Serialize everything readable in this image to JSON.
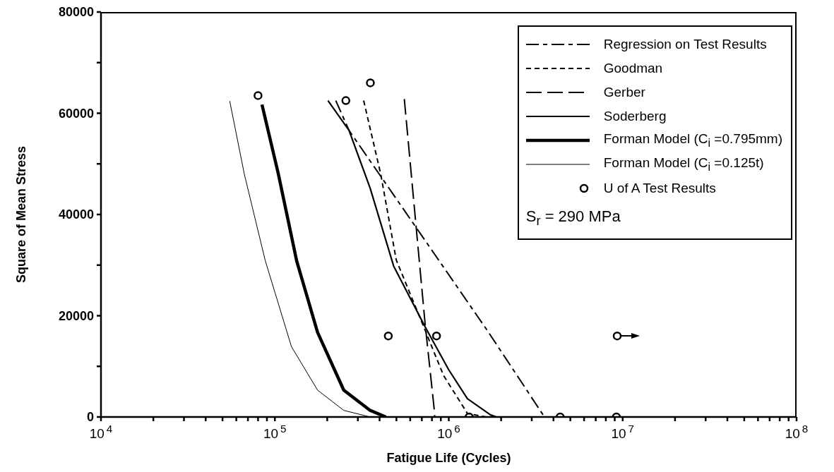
{
  "chart_data": {
    "type": "line",
    "xlabel": "Fatigue Life (Cycles)",
    "ylabel": "Square of Mean Stress",
    "log": "x",
    "legend": "top right",
    "grid": false,
    "xlim": [
      10000,
      100000000
    ],
    "ylim": [
      0,
      80000
    ],
    "xticks": [
      {
        "value": 10000,
        "label": "10$^{4}$"
      },
      {
        "value": 20000,
        "label": null
      },
      {
        "value": 30000,
        "label": null
      },
      {
        "value": 40000,
        "label": null
      },
      {
        "value": 50000,
        "label": null
      },
      {
        "value": 60000,
        "label": null
      },
      {
        "value": 70000,
        "label": null
      },
      {
        "value": 80000,
        "label": null
      },
      {
        "value": 90000,
        "label": null
      },
      {
        "value": 100000,
        "label": "10$^{5}$"
      },
      {
        "value": 200000,
        "label": null
      },
      {
        "value": 300000,
        "label": null
      },
      {
        "value": 400000,
        "label": null
      },
      {
        "value": 500000,
        "label": null
      },
      {
        "value": 600000,
        "label": null
      },
      {
        "value": 700000,
        "label": null
      },
      {
        "value": 800000,
        "label": null
      },
      {
        "value": 900000,
        "label": null
      },
      {
        "value": 1000000,
        "label": "10$^{6}$"
      },
      {
        "value": 2000000,
        "label": null
      },
      {
        "value": 3000000,
        "label": null
      },
      {
        "value": 4000000,
        "label": null
      },
      {
        "value": 5000000,
        "label": null
      },
      {
        "value": 6000000,
        "label": null
      },
      {
        "value": 7000000,
        "label": null
      },
      {
        "value": 8000000,
        "label": null
      },
      {
        "value": 9000000,
        "label": null
      },
      {
        "value": 10000000,
        "label": "10$^{7}$"
      },
      {
        "value": 20000000,
        "label": null
      },
      {
        "value": 30000000,
        "label": null
      },
      {
        "value": 40000000,
        "label": null
      },
      {
        "value": 50000000,
        "label": null
      },
      {
        "value": 60000000,
        "label": null
      },
      {
        "value": 70000000,
        "label": null
      },
      {
        "value": 80000000,
        "label": null
      },
      {
        "value": 90000000,
        "label": null
      },
      {
        "value": 100000000,
        "label": "10$^{8}$"
      }
    ],
    "yticks": [
      0,
      {
        "value": 10000,
        "label": null
      },
      20000,
      {
        "value": 30000,
        "label": null
      },
      40000,
      {
        "value": 50000,
        "label": null
      },
      60000,
      {
        "value": 70000,
        "label": null
      },
      80000
    ],
    "annotations": [
      "S$_{r}$ = 290 MPa"
    ],
    "series": [
      {
        "name": "Regression on Test Results",
        "type": "line",
        "line_style": "dashed",
        "color": "#000000",
        "x": [
          224000,
          267000,
          1680000,
          3550000
        ],
        "values": [
          62500,
          56600,
          16900,
          0
        ]
      },
      {
        "name": "Goodman",
        "type": "line",
        "line_style": "dashed",
        "color": "#000000",
        "x": [
          324000,
          406000,
          499000,
          706000,
          933000,
          1280000,
          1640000
        ],
        "values": [
          62500,
          48000,
          31000,
          18400,
          8200,
          700,
          0
        ]
      },
      {
        "name": "Gerber",
        "type": "line",
        "line_style": "dashed",
        "color": "#000000",
        "x": [
          555000,
          731000,
          826000,
          830000
        ],
        "values": [
          62800,
          18400,
          1300,
          0
        ]
      },
      {
        "name": "Soderberg",
        "type": "line",
        "line_style": "solid",
        "color": "#000000",
        "x": [
          202000,
          267000,
          353000,
          482000,
          731000,
          1000000,
          1280000,
          1740000,
          1880000
        ],
        "values": [
          62500,
          56600,
          45200,
          29800,
          17800,
          9300,
          3600,
          400,
          0
        ]
      },
      {
        "name": "Forman Model (C$_{i}$ =0.795mm)",
        "type": "line",
        "line_style": "solid",
        "color": "#000000",
        "x": [
          84300,
          104700,
          133300,
          176000,
          249000,
          353000,
          435000
        ],
        "values": [
          61700,
          48000,
          30900,
          16700,
          5300,
          1300,
          0
        ]
      },
      {
        "name": "Forman Model (C$_{i}$ =0.125t)",
        "type": "line",
        "line_style": "solid",
        "color": "#000000",
        "x": [
          55000,
          66700,
          88000,
          124500,
          176000,
          249000,
          353000
        ],
        "values": [
          62400,
          48000,
          30900,
          13900,
          5300,
          1300,
          0
        ]
      },
      {
        "name": "U of A Test Results",
        "type": "scatter",
        "marker": "circle",
        "color": "#000000",
        "x": [
          80000,
          256000,
          354000,
          449000,
          850000,
          1310000,
          4370000,
          9200000,
          9300000
        ],
        "values": [
          63500,
          62500,
          66000,
          16000,
          16000,
          0,
          0,
          0,
          16000
        ]
      }
    ]
  }
}
